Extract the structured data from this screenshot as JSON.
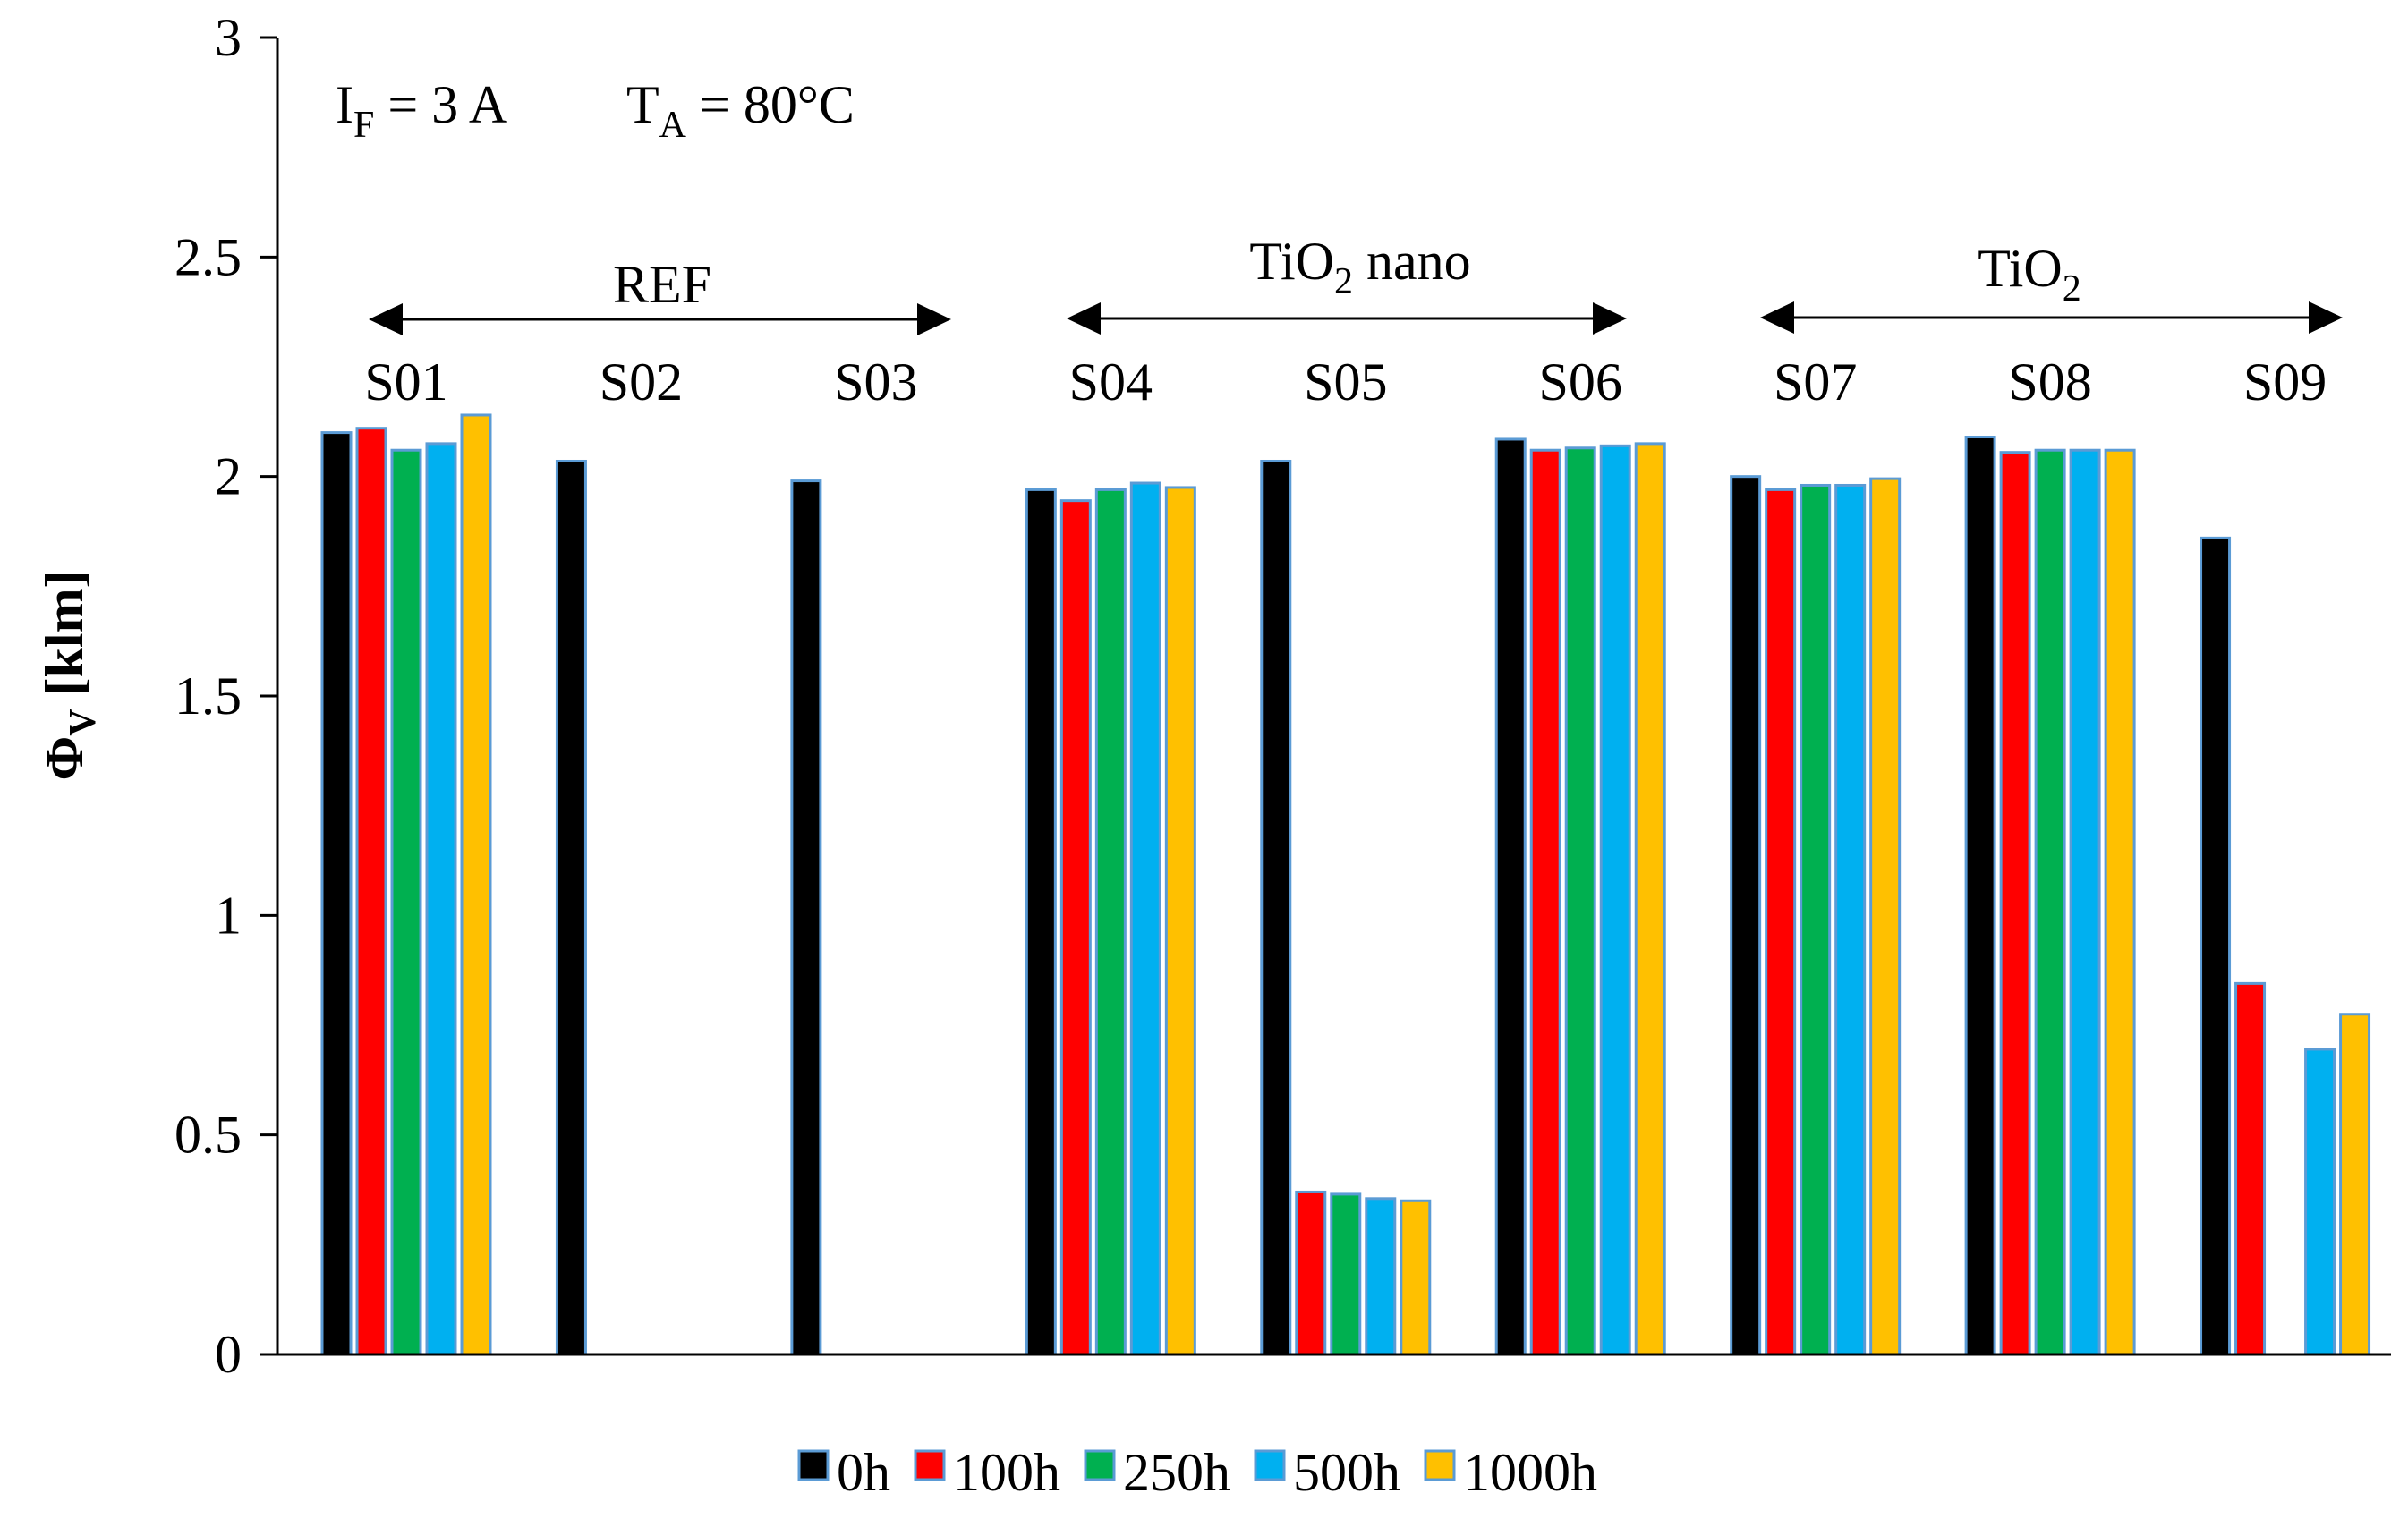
{
  "chart_data": {
    "type": "bar",
    "ylabel_main": "Φ",
    "ylabel_sub": "V",
    "ylabel_unit": " [klm]",
    "ylim": [
      0,
      3
    ],
    "yticks": [
      "0",
      "0.5",
      "1",
      "1.5",
      "2",
      "2.5",
      "3"
    ],
    "ytick_values": [
      0,
      0.5,
      1,
      1.5,
      2,
      2.5,
      3
    ],
    "grid": false,
    "legend_position": "bottom",
    "condition": {
      "if_main": "I",
      "if_sub": "F",
      "if_rest": " = 3  A",
      "ta_main": "T",
      "ta_sub": "A",
      "ta_rest": " = 80°C"
    },
    "groups": [
      {
        "main": "REF",
        "sub": "",
        "rest": ""
      },
      {
        "main": "TiO",
        "sub": "2",
        "rest": " nano"
      },
      {
        "main": "TiO",
        "sub": "2",
        "rest": ""
      }
    ],
    "categories": [
      "S01",
      "S02",
      "S03",
      "S04",
      "S05",
      "S06",
      "S07",
      "S08",
      "S09"
    ],
    "series": [
      {
        "name": "0h",
        "color": "#000000",
        "values": [
          2.1,
          2.035,
          1.99,
          1.97,
          2.035,
          2.085,
          2.0,
          2.09,
          1.86
        ]
      },
      {
        "name": "100h",
        "color": "#ff0000",
        "values": [
          2.11,
          null,
          null,
          1.945,
          0.37,
          2.06,
          1.97,
          2.055,
          0.845
        ]
      },
      {
        "name": "250h",
        "color": "#00b050",
        "values": [
          2.06,
          null,
          null,
          1.97,
          0.365,
          2.065,
          1.98,
          2.06,
          null
        ]
      },
      {
        "name": "500h",
        "color": "#00b0f0",
        "values": [
          2.075,
          null,
          null,
          1.985,
          0.355,
          2.07,
          1.98,
          2.06,
          0.695
        ]
      },
      {
        "name": "1000h",
        "color": "#ffc000",
        "values": [
          2.14,
          null,
          null,
          1.975,
          0.35,
          2.075,
          1.995,
          2.06,
          0.775
        ]
      }
    ]
  }
}
